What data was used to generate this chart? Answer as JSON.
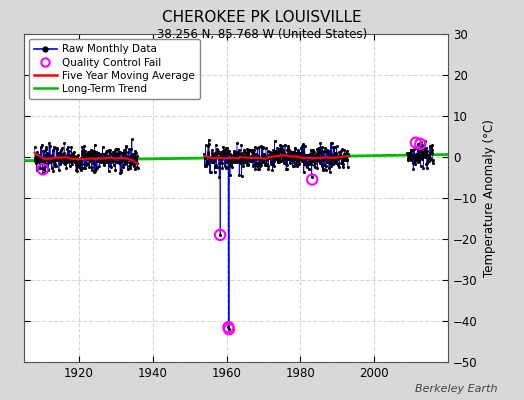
{
  "title": "CHEROKEE PK LOUISVILLE",
  "subtitle": "38.256 N, 85.768 W (United States)",
  "ylabel": "Temperature Anomaly (°C)",
  "credit": "Berkeley Earth",
  "ylim": [
    -50,
    30
  ],
  "yticks": [
    -50,
    -40,
    -30,
    -20,
    -10,
    0,
    10,
    20,
    30
  ],
  "xlim": [
    1905,
    2020
  ],
  "xticks": [
    1920,
    1940,
    1960,
    1980,
    2000
  ],
  "fig_bg_color": "#d8d8d8",
  "plot_bg_color": "#ffffff",
  "grid_color": "#cccccc",
  "raw_color": "#0000ff",
  "raw_dot_color": "#000000",
  "qc_fail_color": "#ff00ff",
  "moving_avg_color": "#ff0000",
  "trend_color": "#00bb00",
  "seg1_start": 1908,
  "seg1_end": 1936,
  "seg2_start": 1954,
  "seg2_end": 1993,
  "seg3_start": 2009,
  "seg3_end": 2016,
  "noise_std": 1.6,
  "outlier1_year": 1958.25,
  "outlier1_val": -19.0,
  "outlier2_year": 1960.5,
  "outlier2_val": -41.5,
  "outlier3_year": 1960.67,
  "outlier3_val": -42.0,
  "qc_years": [
    1910.2,
    1958.25,
    1960.5,
    1960.67,
    1983.2,
    2011.3,
    2012.5
  ],
  "qc_vals": [
    -3.0,
    -19.0,
    -41.5,
    -42.0,
    -5.5,
    3.5,
    3.2
  ],
  "trend_x": [
    1905,
    2020
  ],
  "trend_y": [
    -0.9,
    0.6
  ]
}
